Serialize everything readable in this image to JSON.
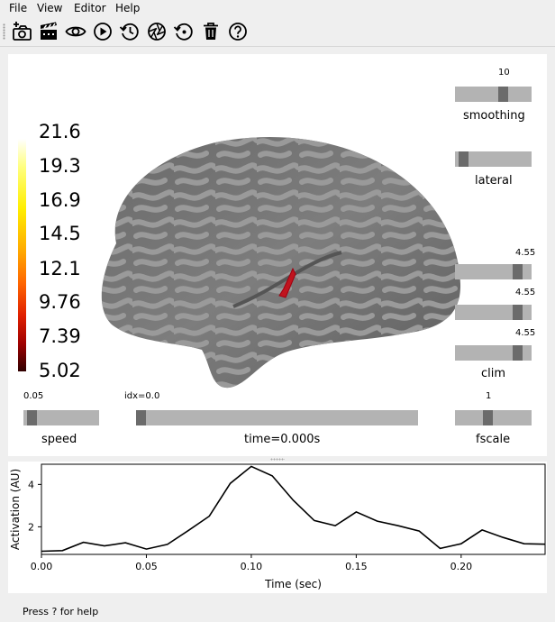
{
  "menu": {
    "items": [
      "File",
      "View",
      "Editor",
      "Help"
    ]
  },
  "toolbar": {
    "buttons": [
      {
        "name": "screenshot-icon"
      },
      {
        "name": "movie-icon"
      },
      {
        "name": "visibility-icon"
      },
      {
        "name": "play-icon"
      },
      {
        "name": "reset-time-icon"
      },
      {
        "name": "camera-aperture-icon"
      },
      {
        "name": "restore-icon"
      },
      {
        "name": "clear-icon"
      },
      {
        "name": "help-icon"
      }
    ]
  },
  "brain_view": {
    "colorbar": {
      "labels": [
        "21.6",
        "19.3",
        "16.9",
        "14.5",
        "12.1",
        "9.76",
        "7.39",
        "5.02"
      ]
    },
    "sliders": {
      "smoothing": {
        "label": "smoothing",
        "value_text": "10",
        "level": 0.65
      },
      "lateral": {
        "label": "lateral",
        "level": 0.05
      },
      "clim": {
        "label": "clim",
        "values": [
          "4.55",
          "4.55",
          "4.55"
        ],
        "levels": [
          0.87,
          0.87,
          0.87
        ]
      },
      "speed": {
        "label": "speed",
        "value_text": "0.05",
        "level": 0.06
      },
      "time": {
        "label": "time=0.000s",
        "value_text": "idx=0.0",
        "level": 0.0
      },
      "fscale": {
        "label": "fscale",
        "value_text": "1",
        "level": 0.42
      }
    }
  },
  "status": {
    "message": "Press ? for help"
  },
  "chart_data": {
    "type": "line",
    "xlabel": "Time (sec)",
    "ylabel": "Activation (AU)",
    "xlim": [
      0.0,
      0.24
    ],
    "ylim": [
      0.7,
      4.95
    ],
    "xticks": [
      "0.00",
      "0.05",
      "0.10",
      "0.15",
      "0.20"
    ],
    "xtick_values": [
      0.0,
      0.05,
      0.1,
      0.15,
      0.2
    ],
    "yticks": [
      "2",
      "4"
    ],
    "ytick_values": [
      2,
      4
    ],
    "x": [
      0.0,
      0.01,
      0.02,
      0.03,
      0.04,
      0.05,
      0.06,
      0.07,
      0.08,
      0.09,
      0.1,
      0.11,
      0.12,
      0.13,
      0.14,
      0.15,
      0.16,
      0.17,
      0.18,
      0.19,
      0.2,
      0.21,
      0.22,
      0.23,
      0.24
    ],
    "y": [
      0.85,
      0.88,
      1.27,
      1.1,
      1.25,
      0.95,
      1.17,
      1.82,
      2.5,
      4.05,
      4.85,
      4.4,
      3.25,
      2.3,
      2.05,
      2.7,
      2.27,
      2.05,
      1.8,
      0.98,
      1.2,
      1.85,
      1.5,
      1.2,
      1.18
    ]
  }
}
